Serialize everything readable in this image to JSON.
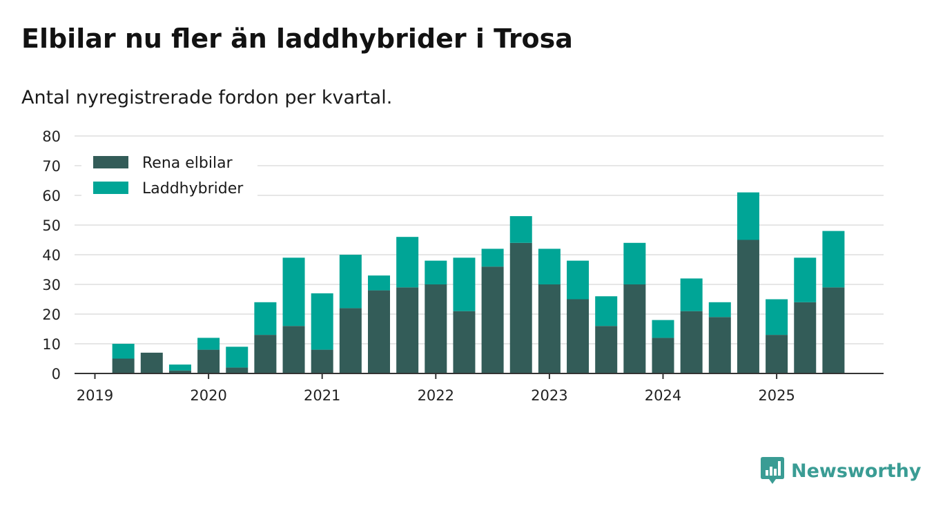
{
  "title": "Elbilar nu fler än laddhybrider i Trosa",
  "subtitle": "Antal nyregistrerade fordon per kvartal.",
  "brand": {
    "name": "Newsworthy",
    "icon": "bar-chart-bubble-icon"
  },
  "colors": {
    "elbil": "#335c58",
    "laddhybrid": "#00a596",
    "grid": "#dddddd",
    "axis": "#333333",
    "brand": "#3a9c94"
  },
  "chart_data": {
    "type": "bar",
    "stacked": true,
    "xlabel": "",
    "ylabel": "",
    "ylim": [
      0,
      80
    ],
    "yticks": [
      0,
      10,
      20,
      30,
      40,
      50,
      60,
      70,
      80
    ],
    "xticks": [
      "2019",
      "2020",
      "2021",
      "2022",
      "2023",
      "2024",
      "2025"
    ],
    "legend_position": "top-left",
    "categories": [
      "2019 K1",
      "2019 K2",
      "2019 K3",
      "2019 K4",
      "2020 K1",
      "2020 K2",
      "2020 K3",
      "2020 K4",
      "2021 K1",
      "2021 K2",
      "2021 K3",
      "2021 K4",
      "2022 K1",
      "2022 K2",
      "2022 K3",
      "2022 K4",
      "2023 K1",
      "2023 K2",
      "2023 K3",
      "2023 K4",
      "2024 K1",
      "2024 K2",
      "2024 K3",
      "2024 K4",
      "2025 K1",
      "2025 K2",
      "2025 K3"
    ],
    "series": [
      {
        "name": "Rena elbilar",
        "values": [
          0,
          5,
          7,
          1,
          8,
          2,
          13,
          16,
          8,
          22,
          28,
          29,
          30,
          21,
          36,
          44,
          30,
          25,
          16,
          30,
          12,
          21,
          19,
          45,
          13,
          24,
          29
        ]
      },
      {
        "name": "Laddhybrider",
        "values": [
          0,
          5,
          0,
          2,
          4,
          7,
          11,
          23,
          19,
          18,
          5,
          17,
          8,
          18,
          6,
          9,
          12,
          13,
          10,
          14,
          6,
          11,
          5,
          16,
          12,
          15,
          19
        ]
      }
    ]
  }
}
